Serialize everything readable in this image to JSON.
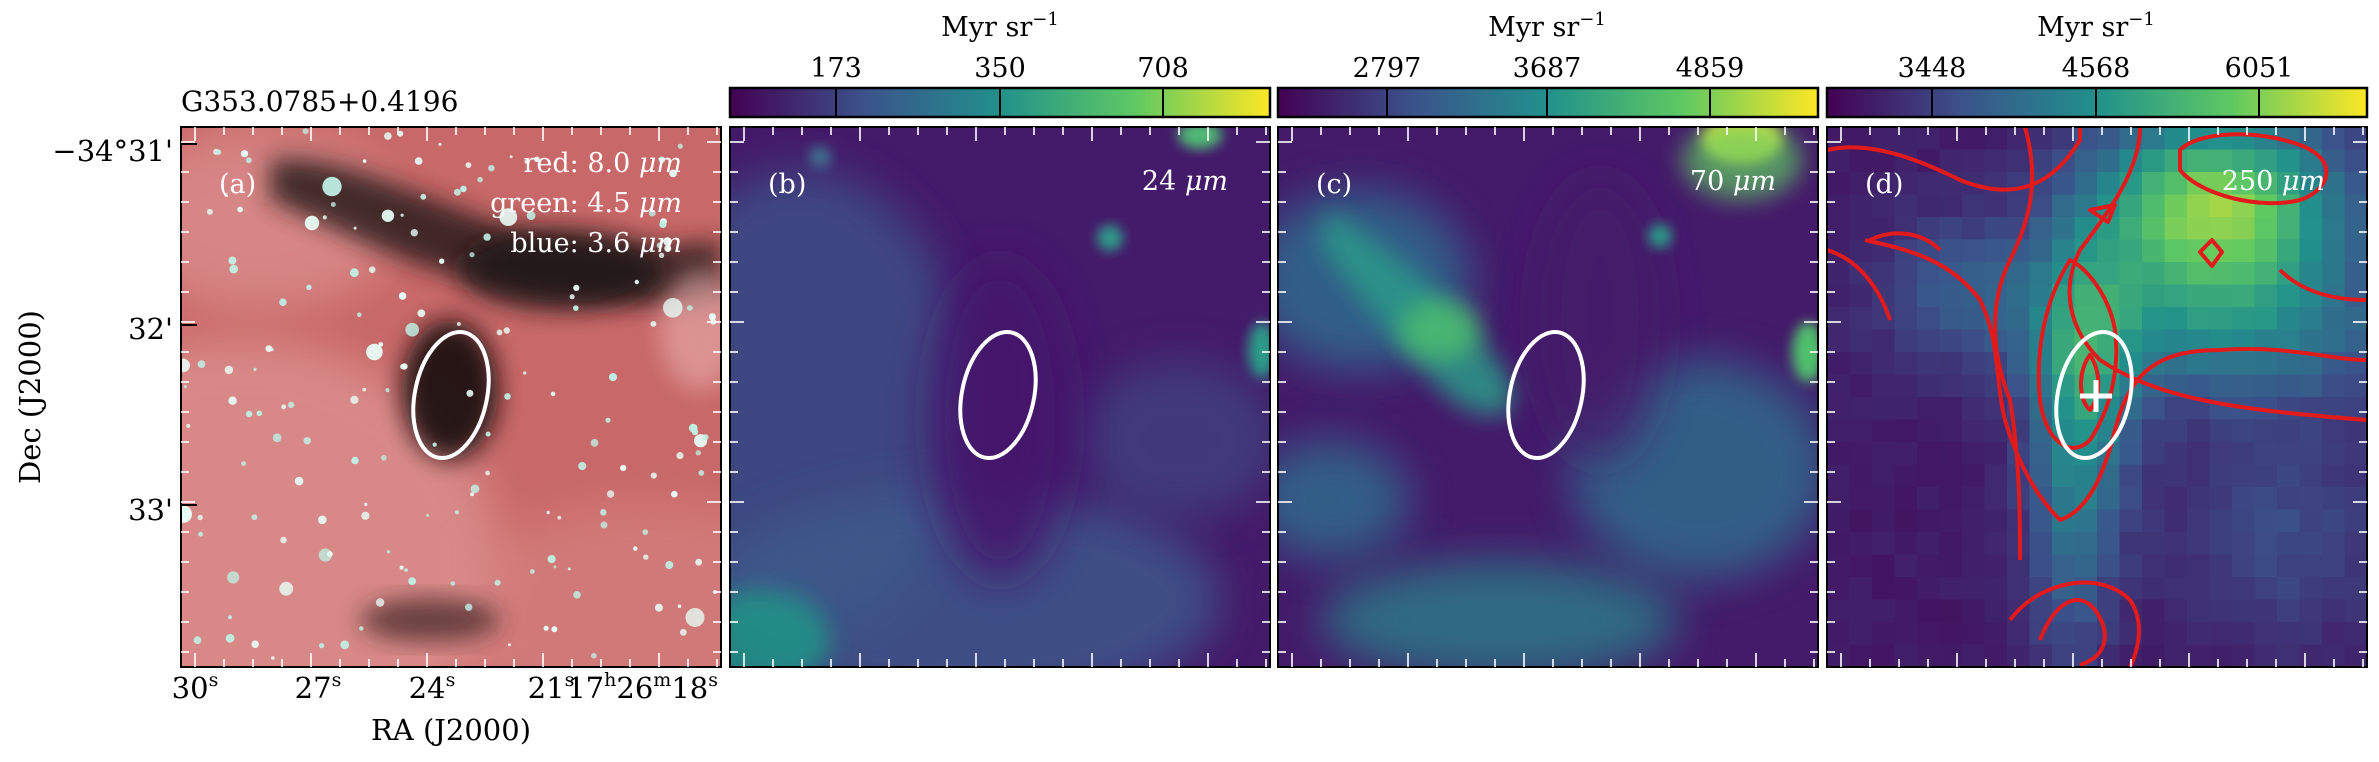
{
  "figure": {
    "source_name": "G353.0785+0.4196",
    "colorbar_unit": "Myr sr",
    "colorbar_unit_exp": "−1",
    "axes": {
      "ylabel": "Dec (J2000)",
      "xlabel": "RA (J2000)",
      "dec_ticks": [
        {
          "main": "−34°31",
          "mark": "'"
        },
        {
          "main": "32",
          "mark": "'"
        },
        {
          "main": "33",
          "mark": "'"
        }
      ],
      "ra_ticks": [
        {
          "base": "30",
          "sup": "s"
        },
        {
          "base": "27",
          "sup": "s"
        },
        {
          "base": "24",
          "sup": "s"
        },
        {
          "base": "21",
          "sup": "s"
        },
        {
          "base": "17",
          "sup": "h",
          "base2": "26",
          "sup2": "m",
          "base3": "18",
          "sup3": "s"
        }
      ]
    },
    "panels": [
      {
        "tag": "(a)",
        "legend": [
          {
            "label": "red: 8.0 ",
            "unit": "μm",
            "color": "#e0706e"
          },
          {
            "label": "green: 4.5 ",
            "unit": "μm",
            "color": "#7ad6c0"
          },
          {
            "label": "blue: 3.6 ",
            "unit": "μm",
            "color": "#ffffff"
          }
        ]
      },
      {
        "tag": "(b)",
        "wavelength": "24 ",
        "unit": "μm",
        "colorbar_ticks": [
          "173",
          "350",
          "708"
        ]
      },
      {
        "tag": "(c)",
        "wavelength": "70 ",
        "unit": "μm",
        "colorbar_ticks": [
          "2797",
          "3687",
          "4859"
        ]
      },
      {
        "tag": "(d)",
        "wavelength": "250 ",
        "unit": "μm",
        "colorbar_ticks": [
          "3448",
          "4568",
          "6051"
        ]
      }
    ],
    "colormap": "viridis",
    "colormap_stops": [
      "#440154",
      "#3b528b",
      "#21918c",
      "#5ec962",
      "#fde725"
    ],
    "ellipse_color": "#ffffff",
    "contour_color": "#e31a1c",
    "marker": "plus"
  }
}
